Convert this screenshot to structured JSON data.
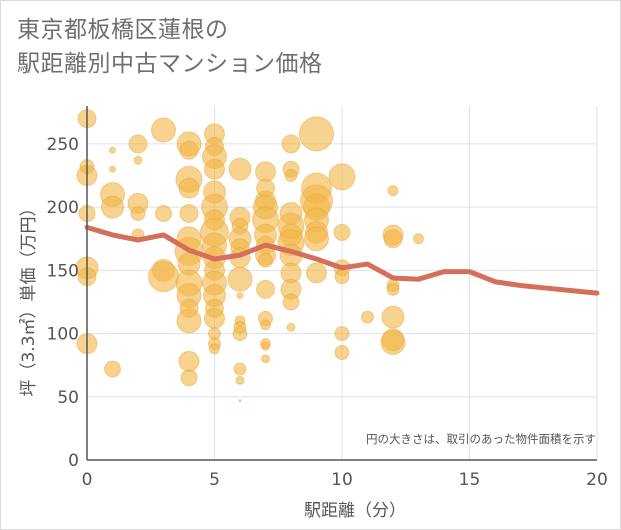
{
  "title_line1": "東京都板橋区蓮根の",
  "title_line2": "駅距離別中古マンション価格",
  "colors": {
    "bubble": "#f2b544",
    "bubble_stroke": "#e9a83a",
    "line": "#d4705a",
    "grid": "#d6e4ee",
    "axis": "#555555"
  },
  "chart_data": {
    "type": "scatter",
    "title": "東京都板橋区蓮根の駅距離別中古マンション価格",
    "xlabel": "駅距離（分）",
    "ylabel": "坪（3.3㎡）単価（万円）",
    "xlim": [
      0,
      20
    ],
    "ylim": [
      0,
      280
    ],
    "xticks": [
      "0",
      "5",
      "10",
      "15",
      "20"
    ],
    "yticks": [
      "0",
      "50",
      "100",
      "150",
      "200",
      "250"
    ],
    "grid": true,
    "annotation": "円の大きさは、取引のあった物件面積を示す",
    "bubbles": [
      {
        "x": 0,
        "y": 270,
        "s": 9
      },
      {
        "x": 0,
        "y": 232,
        "s": 7
      },
      {
        "x": 0,
        "y": 225,
        "s": 10
      },
      {
        "x": 0,
        "y": 195,
        "s": 8
      },
      {
        "x": 0,
        "y": 152,
        "s": 11
      },
      {
        "x": 0,
        "y": 145,
        "s": 9
      },
      {
        "x": 0,
        "y": 92,
        "s": 10
      },
      {
        "x": 1,
        "y": 245,
        "s": 3
      },
      {
        "x": 1,
        "y": 230,
        "s": 3
      },
      {
        "x": 1,
        "y": 210,
        "s": 12
      },
      {
        "x": 1,
        "y": 200,
        "s": 11
      },
      {
        "x": 1,
        "y": 72,
        "s": 8
      },
      {
        "x": 2,
        "y": 250,
        "s": 9
      },
      {
        "x": 2,
        "y": 237,
        "s": 4
      },
      {
        "x": 2,
        "y": 203,
        "s": 10
      },
      {
        "x": 2,
        "y": 195,
        "s": 7
      },
      {
        "x": 2,
        "y": 178,
        "s": 6
      },
      {
        "x": 3,
        "y": 261,
        "s": 12
      },
      {
        "x": 3,
        "y": 195,
        "s": 8
      },
      {
        "x": 3,
        "y": 150,
        "s": 11
      },
      {
        "x": 3,
        "y": 145,
        "s": 15
      },
      {
        "x": 4,
        "y": 250,
        "s": 12
      },
      {
        "x": 4,
        "y": 245,
        "s": 9
      },
      {
        "x": 4,
        "y": 222,
        "s": 13
      },
      {
        "x": 4,
        "y": 215,
        "s": 10
      },
      {
        "x": 4,
        "y": 195,
        "s": 9
      },
      {
        "x": 4,
        "y": 175,
        "s": 12
      },
      {
        "x": 4,
        "y": 165,
        "s": 14
      },
      {
        "x": 4,
        "y": 155,
        "s": 11
      },
      {
        "x": 4,
        "y": 140,
        "s": 13
      },
      {
        "x": 4,
        "y": 130,
        "s": 12
      },
      {
        "x": 4,
        "y": 120,
        "s": 9
      },
      {
        "x": 4,
        "y": 110,
        "s": 12
      },
      {
        "x": 4,
        "y": 78,
        "s": 10
      },
      {
        "x": 4,
        "y": 65,
        "s": 8
      },
      {
        "x": 5,
        "y": 258,
        "s": 10
      },
      {
        "x": 5,
        "y": 248,
        "s": 9
      },
      {
        "x": 5,
        "y": 240,
        "s": 12
      },
      {
        "x": 5,
        "y": 230,
        "s": 10
      },
      {
        "x": 5,
        "y": 212,
        "s": 11
      },
      {
        "x": 5,
        "y": 200,
        "s": 13
      },
      {
        "x": 5,
        "y": 190,
        "s": 10
      },
      {
        "x": 5,
        "y": 180,
        "s": 14
      },
      {
        "x": 5,
        "y": 170,
        "s": 12
      },
      {
        "x": 5,
        "y": 160,
        "s": 11
      },
      {
        "x": 5,
        "y": 150,
        "s": 10
      },
      {
        "x": 5,
        "y": 140,
        "s": 12
      },
      {
        "x": 5,
        "y": 130,
        "s": 11
      },
      {
        "x": 5,
        "y": 120,
        "s": 9
      },
      {
        "x": 5,
        "y": 112,
        "s": 10
      },
      {
        "x": 5,
        "y": 100,
        "s": 6
      },
      {
        "x": 5,
        "y": 92,
        "s": 6
      },
      {
        "x": 5,
        "y": 88,
        "s": 5
      },
      {
        "x": 6,
        "y": 230,
        "s": 11
      },
      {
        "x": 6,
        "y": 192,
        "s": 10
      },
      {
        "x": 6,
        "y": 185,
        "s": 8
      },
      {
        "x": 6,
        "y": 175,
        "s": 11
      },
      {
        "x": 6,
        "y": 168,
        "s": 9
      },
      {
        "x": 6,
        "y": 160,
        "s": 10
      },
      {
        "x": 6,
        "y": 143,
        "s": 12
      },
      {
        "x": 6,
        "y": 130,
        "s": 3
      },
      {
        "x": 6,
        "y": 110,
        "s": 5
      },
      {
        "x": 6,
        "y": 105,
        "s": 6
      },
      {
        "x": 6,
        "y": 100,
        "s": 7
      },
      {
        "x": 6,
        "y": 72,
        "s": 6
      },
      {
        "x": 6,
        "y": 63,
        "s": 4
      },
      {
        "x": 6,
        "y": 47,
        "s": 1
      },
      {
        "x": 7,
        "y": 228,
        "s": 10
      },
      {
        "x": 7,
        "y": 215,
        "s": 9
      },
      {
        "x": 7,
        "y": 205,
        "s": 10
      },
      {
        "x": 7,
        "y": 200,
        "s": 12
      },
      {
        "x": 7,
        "y": 190,
        "s": 13
      },
      {
        "x": 7,
        "y": 178,
        "s": 11
      },
      {
        "x": 7,
        "y": 170,
        "s": 9
      },
      {
        "x": 7,
        "y": 162,
        "s": 10
      },
      {
        "x": 7,
        "y": 158,
        "s": 7
      },
      {
        "x": 7,
        "y": 135,
        "s": 9
      },
      {
        "x": 7,
        "y": 112,
        "s": 7
      },
      {
        "x": 7,
        "y": 107,
        "s": 5
      },
      {
        "x": 7,
        "y": 92,
        "s": 5
      },
      {
        "x": 7,
        "y": 90,
        "s": 4
      },
      {
        "x": 7,
        "y": 80,
        "s": 4
      },
      {
        "x": 8,
        "y": 250,
        "s": 9
      },
      {
        "x": 8,
        "y": 230,
        "s": 8
      },
      {
        "x": 8,
        "y": 225,
        "s": 6
      },
      {
        "x": 8,
        "y": 195,
        "s": 11
      },
      {
        "x": 8,
        "y": 185,
        "s": 13
      },
      {
        "x": 8,
        "y": 178,
        "s": 11
      },
      {
        "x": 8,
        "y": 172,
        "s": 13
      },
      {
        "x": 8,
        "y": 162,
        "s": 11
      },
      {
        "x": 8,
        "y": 148,
        "s": 10
      },
      {
        "x": 8,
        "y": 135,
        "s": 10
      },
      {
        "x": 8,
        "y": 125,
        "s": 8
      },
      {
        "x": 8,
        "y": 105,
        "s": 4
      },
      {
        "x": 9,
        "y": 258,
        "s": 17
      },
      {
        "x": 9,
        "y": 215,
        "s": 15
      },
      {
        "x": 9,
        "y": 205,
        "s": 16
      },
      {
        "x": 9,
        "y": 200,
        "s": 13
      },
      {
        "x": 9,
        "y": 190,
        "s": 12
      },
      {
        "x": 9,
        "y": 180,
        "s": 11
      },
      {
        "x": 9,
        "y": 175,
        "s": 12
      },
      {
        "x": 9,
        "y": 148,
        "s": 10
      },
      {
        "x": 10,
        "y": 224,
        "s": 13
      },
      {
        "x": 10,
        "y": 180,
        "s": 8
      },
      {
        "x": 10,
        "y": 152,
        "s": 8
      },
      {
        "x": 10,
        "y": 145,
        "s": 7
      },
      {
        "x": 10,
        "y": 100,
        "s": 7
      },
      {
        "x": 10,
        "y": 85,
        "s": 7
      },
      {
        "x": 11,
        "y": 113,
        "s": 6
      },
      {
        "x": 12,
        "y": 213,
        "s": 5
      },
      {
        "x": 12,
        "y": 178,
        "s": 10
      },
      {
        "x": 12,
        "y": 175,
        "s": 9
      },
      {
        "x": 12,
        "y": 138,
        "s": 6
      },
      {
        "x": 12,
        "y": 135,
        "s": 6
      },
      {
        "x": 12,
        "y": 113,
        "s": 11
      },
      {
        "x": 12,
        "y": 95,
        "s": 11
      },
      {
        "x": 12,
        "y": 93,
        "s": 12
      },
      {
        "x": 13,
        "y": 175,
        "s": 5
      }
    ],
    "series": [
      {
        "type": "line",
        "x": [
          0,
          1,
          2,
          3,
          4,
          5,
          6,
          7,
          8,
          9,
          10,
          11,
          12,
          13,
          14,
          15,
          16,
          17,
          18,
          19,
          20
        ],
        "values": [
          184,
          178,
          174,
          178,
          166,
          159,
          162,
          170,
          165,
          159,
          152,
          155,
          144,
          143,
          149,
          149,
          141,
          138,
          136,
          134,
          132
        ]
      }
    ]
  }
}
